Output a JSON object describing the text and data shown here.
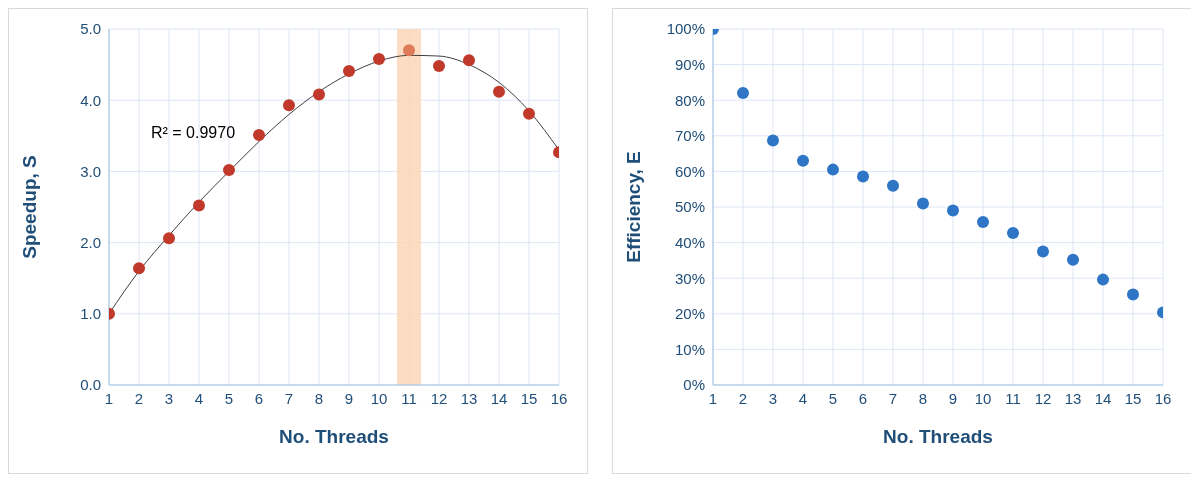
{
  "chart_data": [
    {
      "type": "scatter",
      "xlabel": "No. Threads",
      "ylabel": "Speedup, S",
      "x": [
        1,
        2,
        3,
        4,
        5,
        6,
        7,
        8,
        9,
        10,
        11,
        12,
        13,
        14,
        15,
        16
      ],
      "series": [
        {
          "marker": "circle",
          "color": "#c0392b",
          "colors": [
            "#c0392b",
            "#c0392b",
            "#c0392b",
            "#c0392b",
            "#c0392b",
            "#c0392b",
            "#c0392b",
            "#c0392b",
            "#c0392b",
            "#c0392b",
            "#e07b5a",
            "#c0392b",
            "#c0392b",
            "#c0392b",
            "#c0392b",
            "#c0392b"
          ],
          "values": [
            1.0,
            1.64,
            2.06,
            2.52,
            3.02,
            3.51,
            3.93,
            4.08,
            4.41,
            4.58,
            4.7,
            4.48,
            4.56,
            4.12,
            3.81,
            3.27
          ]
        },
        {
          "type": "line",
          "marker": "none",
          "color": "#404040",
          "x": [
            1,
            2,
            3,
            4,
            5,
            6,
            7,
            8,
            9,
            10,
            11,
            12,
            13,
            14,
            15,
            16
          ],
          "values": [
            1.0,
            1.6,
            2.1,
            2.57,
            3.0,
            3.42,
            3.8,
            4.12,
            4.37,
            4.55,
            4.63,
            4.62,
            4.5,
            4.25,
            3.85,
            3.3
          ]
        }
      ],
      "bands": [
        {
          "axis": "x",
          "from": 10.6,
          "to": 11.4,
          "color": "#fbd5b5"
        }
      ],
      "annotations": [
        "R² = 0.9970"
      ],
      "xlim": [
        1,
        16
      ],
      "xticks": [
        1,
        2,
        3,
        4,
        5,
        6,
        7,
        8,
        9,
        10,
        11,
        12,
        13,
        14,
        15,
        16
      ],
      "ylim": [
        0,
        5
      ],
      "yticks": [
        {
          "value": 0,
          "label": "0.0"
        },
        {
          "value": 1,
          "label": "1.0"
        },
        {
          "value": 2,
          "label": "2.0"
        },
        {
          "value": 3,
          "label": "3.0"
        },
        {
          "value": 4,
          "label": "4.0"
        },
        {
          "value": 5,
          "label": "5.0"
        }
      ],
      "grid": true
    },
    {
      "type": "scatter",
      "xlabel": "No. Threads",
      "ylabel": "Efficiency, E",
      "x": [
        1,
        2,
        3,
        4,
        5,
        6,
        7,
        8,
        9,
        10,
        11,
        12,
        13,
        14,
        15,
        16
      ],
      "series": [
        {
          "color": "#2e75c6",
          "values": [
            100,
            82,
            68.7,
            63,
            60.5,
            58.6,
            56,
            51,
            49,
            45.8,
            42.7,
            37.5,
            35.2,
            29.6,
            25.4,
            20.4
          ]
        }
      ],
      "xlim": [
        1,
        16
      ],
      "xticks": [
        1,
        2,
        3,
        4,
        5,
        6,
        7,
        8,
        9,
        10,
        11,
        12,
        13,
        14,
        15,
        16
      ],
      "ylim": [
        0,
        100
      ],
      "yticks": [
        {
          "value": 0,
          "label": "0%"
        },
        {
          "value": 10,
          "label": "10%"
        },
        {
          "value": 20,
          "label": "20%"
        },
        {
          "value": 30,
          "label": "30%"
        },
        {
          "value": 40,
          "label": "40%"
        },
        {
          "value": 50,
          "label": "50%"
        },
        {
          "value": 60,
          "label": "60%"
        },
        {
          "value": 70,
          "label": "70%"
        },
        {
          "value": 80,
          "label": "80%"
        },
        {
          "value": 90,
          "label": "90%"
        },
        {
          "value": 100,
          "label": "100%"
        }
      ],
      "grid": true,
      "marker": "circle"
    }
  ]
}
